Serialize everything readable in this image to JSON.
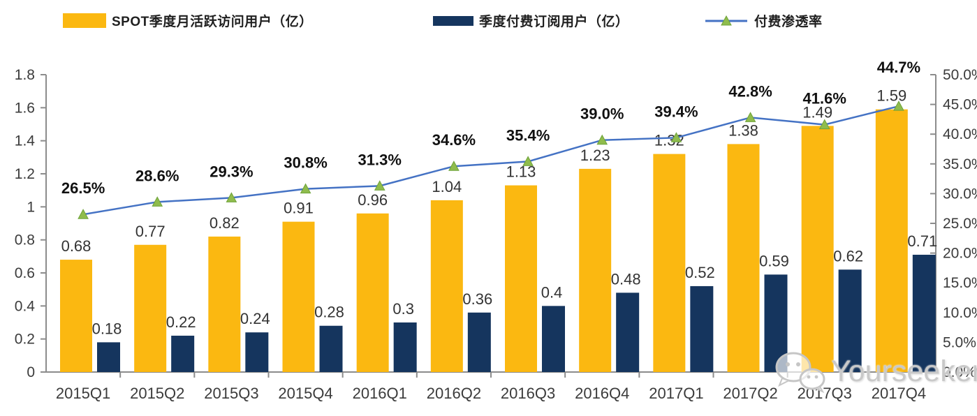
{
  "chart_data": {
    "type": "combo-bar-line",
    "title": "",
    "categories": [
      "2015Q1",
      "2015Q2",
      "2015Q3",
      "2015Q4",
      "2016Q1",
      "2016Q2",
      "2016Q3",
      "2016Q4",
      "2017Q1",
      "2017Q2",
      "2017Q3",
      "2017Q4"
    ],
    "series": [
      {
        "name": "SPOT季度月活跃访问用户（亿）",
        "type": "bar",
        "axis": "left",
        "color": "#FBB811",
        "values": [
          0.68,
          0.77,
          0.82,
          0.91,
          0.96,
          1.04,
          1.13,
          1.23,
          1.32,
          1.38,
          1.49,
          1.59
        ],
        "labels": [
          "0.68",
          "0.77",
          "0.82",
          "0.91",
          "0.96",
          "1.04",
          "1.13",
          "1.23",
          "1.32",
          "1.38",
          "1.49",
          "1.59"
        ]
      },
      {
        "name": "季度付费订阅用户（亿）",
        "type": "bar",
        "axis": "left",
        "color": "#15355E",
        "values": [
          0.18,
          0.22,
          0.24,
          0.28,
          0.3,
          0.36,
          0.4,
          0.48,
          0.52,
          0.59,
          0.62,
          0.71
        ],
        "labels": [
          "0.18",
          "0.22",
          "0.24",
          "0.28",
          "0.3",
          "0.36",
          "0.4",
          "0.48",
          "0.52",
          "0.59",
          "0.62",
          "0.71"
        ]
      },
      {
        "name": "付费渗透率",
        "type": "line",
        "axis": "right",
        "color": "#4472C4",
        "marker": "triangle",
        "marker_color": "#8FBC4D",
        "marker_stroke": "#6fa33a",
        "values": [
          26.5,
          28.6,
          29.3,
          30.8,
          31.3,
          34.6,
          35.4,
          39.0,
          39.4,
          42.8,
          41.6,
          44.7
        ],
        "labels": [
          "26.5%",
          "28.6%",
          "29.3%",
          "30.8%",
          "31.3%",
          "34.6%",
          "35.4%",
          "39.0%",
          "39.4%",
          "42.8%",
          "41.6%",
          "44.7%"
        ]
      }
    ],
    "left_axis": {
      "min": 0,
      "max": 1.8,
      "step": 0.2,
      "tick_labels": [
        "0",
        "0.2",
        "0.4",
        "0.6",
        "0.8",
        "1",
        "1.2",
        "1.4",
        "1.6",
        "1.8"
      ]
    },
    "right_axis": {
      "min": 0,
      "max": 50,
      "step": 5,
      "tick_labels": [
        "0.0%",
        "5.0%",
        "10.0%",
        "15.0%",
        "20.0%",
        "25.0%",
        "30.0%",
        "35.0%",
        "40.0%",
        "45.0%",
        "50.0%"
      ]
    },
    "grid": false,
    "legend_position": "top"
  },
  "watermark": {
    "text": "Yourseeker",
    "icon": "wechat-icon"
  },
  "colors": {
    "axis": "#8c8c8c",
    "tick_label": "#3b3b3b",
    "bar_label": "#333333",
    "pct_label": "#111111"
  }
}
